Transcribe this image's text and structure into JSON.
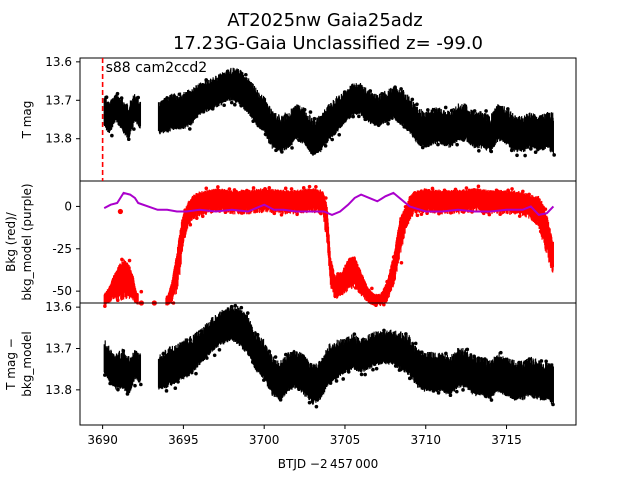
{
  "chart_data": {
    "type": "scatter",
    "title_line1": "AT2025nw  Gaia25adz",
    "title_line2": "17.23G-Gaia Unclassified z= -99.0",
    "xlabel": "BTJD −2 457 000",
    "xlim": [
      3688.6,
      3719.3
    ],
    "xticks": [
      3690,
      3695,
      3700,
      3705,
      3710,
      3715
    ],
    "annotation": "s88 cam2ccd2",
    "marker_x": 3690.0,
    "colors": {
      "flux": "#000000",
      "bkg": "#ff0000",
      "bkg_model": "#aa00cc",
      "marker": "#ff0000"
    },
    "panels": [
      {
        "id": "tmag",
        "ylabel": [
          "T mag"
        ],
        "ylim": [
          13.59,
          13.91
        ],
        "yticks": [
          13.6,
          13.7,
          13.8
        ],
        "inverted": true,
        "series": [
          {
            "type": "band",
            "color": "#000000",
            "x": [
              3690.1,
              3690.4,
              3690.8,
              3691.2,
              3691.6,
              3692.0,
              3692.3,
              3693.5,
              3694.0,
              3694.5,
              3695.0,
              3695.5,
              3696.0,
              3696.5,
              3697.0,
              3697.5,
              3698.0,
              3698.5,
              3699.0,
              3699.5,
              3700.0,
              3700.5,
              3701.0,
              3701.5,
              3702.0,
              3702.5,
              3703.0,
              3703.5,
              3704.0,
              3704.5,
              3705.0,
              3705.5,
              3706.0,
              3706.5,
              3707.0,
              3707.5,
              3708.0,
              3708.5,
              3709.0,
              3709.5,
              3710.0,
              3710.5,
              3711.0,
              3711.5,
              3712.0,
              3712.5,
              3713.0,
              3713.5,
              3714.0,
              3714.5,
              3715.0,
              3715.5,
              3716.0,
              3716.5,
              3717.0,
              3717.5,
              3717.9
            ],
            "mid": [
              13.73,
              13.75,
              13.72,
              13.74,
              13.76,
              13.72,
              13.74,
              13.75,
              13.74,
              13.73,
              13.73,
              13.72,
              13.7,
              13.69,
              13.68,
              13.67,
              13.66,
              13.67,
              13.69,
              13.72,
              13.74,
              13.78,
              13.79,
              13.78,
              13.76,
              13.77,
              13.8,
              13.79,
              13.76,
              13.74,
              13.72,
              13.7,
              13.7,
              13.72,
              13.73,
              13.72,
              13.71,
              13.72,
              13.74,
              13.77,
              13.78,
              13.77,
              13.77,
              13.78,
              13.76,
              13.76,
              13.78,
              13.78,
              13.79,
              13.76,
              13.77,
              13.79,
              13.79,
              13.78,
              13.79,
              13.78,
              13.79
            ],
            "half": [
              0.035,
              0.035,
              0.03,
              0.035,
              0.04,
              0.03,
              0.03,
              0.035,
              0.04,
              0.04,
              0.04,
              0.04,
              0.035,
              0.035,
              0.035,
              0.035,
              0.035,
              0.04,
              0.04,
              0.04,
              0.04,
              0.04,
              0.04,
              0.04,
              0.04,
              0.04,
              0.04,
              0.04,
              0.04,
              0.04,
              0.035,
              0.035,
              0.035,
              0.035,
              0.035,
              0.035,
              0.035,
              0.04,
              0.04,
              0.04,
              0.04,
              0.04,
              0.04,
              0.04,
              0.04,
              0.04,
              0.04,
              0.04,
              0.04,
              0.04,
              0.04,
              0.04,
              0.04,
              0.04,
              0.04,
              0.04,
              0.045
            ],
            "gaps": [
              [
                3692.35,
                3693.45
              ]
            ]
          }
        ]
      },
      {
        "id": "bkg",
        "ylabel": [
          "Bkg (red)/",
          "bkg_model (purple)"
        ],
        "ylim": [
          -57,
          15
        ],
        "yticks": [
          0,
          -25,
          -50
        ],
        "inverted": false,
        "series": [
          {
            "type": "band",
            "color": "#ff0000",
            "x": [
              3690.1,
              3690.4,
              3690.7,
              3691.0,
              3691.3,
              3691.6,
              3691.9,
              3692.1,
              3694.0,
              3694.3,
              3694.6,
              3694.8,
              3695.0,
              3695.3,
              3695.6,
              3696.0,
              3697.0,
              3698.0,
              3699.0,
              3700.0,
              3701.0,
              3702.0,
              3703.0,
              3703.6,
              3703.9,
              3704.1,
              3704.4,
              3704.8,
              3705.2,
              3705.6,
              3706.0,
              3706.4,
              3706.8,
              3707.2,
              3707.6,
              3708.0,
              3708.4,
              3708.8,
              3709.2,
              3709.6,
              3710.0,
              3711.0,
              3712.0,
              3713.0,
              3714.0,
              3715.0,
              3716.0,
              3716.5,
              3717.0,
              3717.3,
              3717.6,
              3717.9
            ],
            "mid": [
              -55,
              -52,
              -47,
              -45,
              -42,
              -43,
              -48,
              -54,
              -56,
              -50,
              -38,
              -25,
              -12,
              -4,
              0,
              2,
              4,
              3,
              3,
              4,
              3,
              3,
              4,
              3,
              -10,
              -38,
              -48,
              -45,
              -40,
              -38,
              -45,
              -52,
              -55,
              -55,
              -50,
              -38,
              -18,
              -5,
              2,
              3,
              4,
              3,
              3,
              4,
              3,
              3,
              2,
              0,
              -3,
              -10,
              -20,
              -30
            ],
            "half": [
              3,
              4,
              6,
              9,
              10,
              9,
              6,
              3,
              2,
              6,
              10,
              11,
              8,
              6,
              6,
              6,
              6,
              6,
              6,
              6,
              6,
              6,
              6,
              6,
              10,
              8,
              6,
              6,
              8,
              8,
              6,
              4,
              3,
              3,
              5,
              8,
              10,
              6,
              6,
              6,
              6,
              6,
              6,
              6,
              6,
              6,
              6,
              6,
              8,
              10,
              10,
              8
            ],
            "gaps": [
              [
                3692.2,
                3693.9
              ]
            ]
          },
          {
            "type": "dots",
            "color": "#ff0000",
            "x": [
              3690.3,
              3691.1,
              3692.4,
              3693.2,
              3704.6,
              3716.8
            ],
            "y": [
              -55,
              -3,
              -57,
              -57,
              -48,
              -5
            ]
          },
          {
            "type": "line",
            "color": "#aa00cc",
            "x": [
              3690.1,
              3690.5,
              3690.9,
              3691.3,
              3691.7,
              3692.0,
              3692.2,
              3693.4,
              3694.0,
              3694.6,
              3695.2,
              3696.0,
              3697.0,
              3698.0,
              3699.0,
              3700.0,
              3700.6,
              3701.2,
              3702.0,
              3703.0,
              3703.7,
              3704.2,
              3704.7,
              3705.2,
              3705.6,
              3706.0,
              3706.5,
              3707.0,
              3707.5,
              3708.0,
              3708.5,
              3709.0,
              3710.0,
              3711.0,
              3712.0,
              3713.0,
              3714.0,
              3715.0,
              3716.0,
              3716.5,
              3717.0,
              3717.5,
              3717.9
            ],
            "y": [
              -1,
              1,
              2,
              8,
              7,
              5,
              2,
              -2,
              -2,
              -3,
              -3,
              -2,
              -3,
              -2,
              -3,
              1,
              -2,
              -2,
              -3,
              -3,
              -3,
              -5,
              -3,
              1,
              5,
              7,
              5,
              3,
              6,
              8,
              4,
              0,
              -3,
              -3,
              -2,
              -3,
              -3,
              -2,
              -2,
              0,
              -5,
              -4,
              0
            ],
            "gaps": [
              [
                3692.25,
                3693.35
              ]
            ]
          }
        ]
      },
      {
        "id": "detrended",
        "ylabel": [
          "T mag −",
          "bkg_model"
        ],
        "ylim": [
          13.59,
          13.885
        ],
        "yticks": [
          13.6,
          13.7,
          13.8
        ],
        "inverted": true,
        "series": [
          {
            "type": "band",
            "color": "#000000",
            "x": [
              3690.1,
              3690.4,
              3690.8,
              3691.2,
              3691.6,
              3692.0,
              3692.3,
              3693.5,
              3694.0,
              3694.5,
              3695.0,
              3695.5,
              3696.0,
              3696.5,
              3697.0,
              3697.5,
              3698.0,
              3698.5,
              3699.0,
              3699.5,
              3700.0,
              3700.5,
              3701.0,
              3701.5,
              3702.0,
              3702.5,
              3703.0,
              3703.5,
              3704.0,
              3704.5,
              3705.0,
              3705.5,
              3706.0,
              3706.5,
              3707.0,
              3707.5,
              3708.0,
              3708.5,
              3709.0,
              3709.5,
              3710.0,
              3710.5,
              3711.0,
              3711.5,
              3712.0,
              3712.5,
              3713.0,
              3713.5,
              3714.0,
              3714.5,
              3715.0,
              3715.5,
              3716.0,
              3716.5,
              3717.0,
              3717.5,
              3717.9
            ],
            "mid": [
              13.72,
              13.74,
              13.76,
              13.75,
              13.77,
              13.74,
              13.75,
              13.76,
              13.75,
              13.74,
              13.73,
              13.72,
              13.7,
              13.68,
              13.66,
              13.65,
              13.64,
              13.65,
              13.67,
              13.71,
              13.73,
              13.77,
              13.78,
              13.76,
              13.75,
              13.77,
              13.79,
              13.78,
              13.74,
              13.73,
              13.72,
              13.71,
              13.72,
              13.71,
              13.7,
              13.7,
              13.7,
              13.71,
              13.72,
              13.75,
              13.76,
              13.76,
              13.76,
              13.77,
              13.75,
              13.75,
              13.77,
              13.77,
              13.78,
              13.76,
              13.77,
              13.78,
              13.78,
              13.77,
              13.78,
              13.78,
              13.79
            ],
            "half": [
              0.035,
              0.035,
              0.035,
              0.04,
              0.04,
              0.03,
              0.03,
              0.035,
              0.04,
              0.04,
              0.04,
              0.04,
              0.035,
              0.035,
              0.035,
              0.035,
              0.035,
              0.04,
              0.04,
              0.04,
              0.04,
              0.04,
              0.04,
              0.04,
              0.04,
              0.04,
              0.04,
              0.04,
              0.04,
              0.04,
              0.035,
              0.035,
              0.035,
              0.035,
              0.035,
              0.035,
              0.035,
              0.04,
              0.04,
              0.04,
              0.04,
              0.04,
              0.04,
              0.04,
              0.04,
              0.04,
              0.04,
              0.04,
              0.04,
              0.04,
              0.04,
              0.04,
              0.04,
              0.04,
              0.04,
              0.04,
              0.045
            ],
            "gaps": [
              [
                3692.35,
                3693.45
              ]
            ]
          }
        ]
      }
    ]
  }
}
